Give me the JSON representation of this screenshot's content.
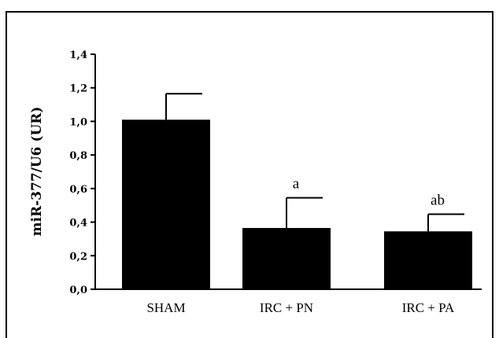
{
  "chart_data": {
    "type": "bar",
    "categories": [
      "SHAM",
      "IRC + PN",
      "IRC + PA"
    ],
    "values": [
      1.01,
      0.365,
      0.345
    ],
    "error_upper": [
      1.165,
      0.545,
      0.447
    ],
    "annotations": [
      "",
      "a",
      "ab"
    ],
    "ylabel": "miR-377/U6 (UR)",
    "ylim": [
      0,
      1.4
    ],
    "yticks": [
      "0,0",
      "0,2",
      "0,4",
      "0,6",
      "0,8",
      "1,0",
      "1,2",
      "1,4"
    ],
    "bar_color": "#000000",
    "grid": false
  }
}
